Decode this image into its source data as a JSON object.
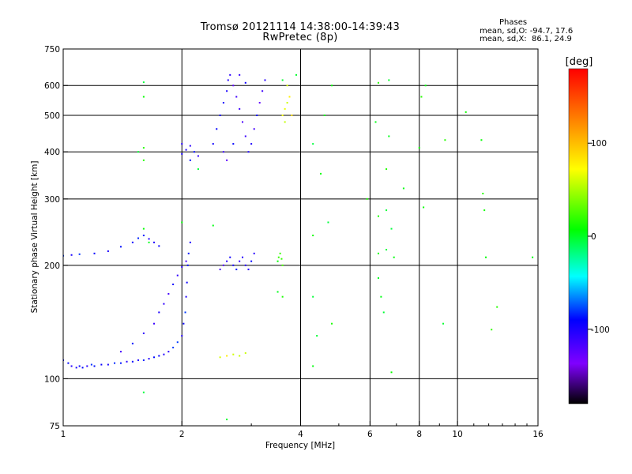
{
  "page": {
    "title_line1": "Tromsø 20121114 14:38:00-14:39:43",
    "title_line2": "RwPretec (8p)",
    "stats_header": "Phases",
    "stats_o": "mean, sd,O: -94.7, 17.6",
    "stats_x": "mean, sd,X:  86.1, 24.9"
  },
  "chart_data": {
    "type": "scatter",
    "title": "Tromsø 20121114 14:38:00-14:39:43",
    "subtitle": "RwPretec (8p)",
    "xlabel": "Frequency [MHz]",
    "ylabel": "Stationary phase Virtual Height [km]",
    "x_scale": "log",
    "y_scale": "log",
    "xlim": [
      1,
      16
    ],
    "ylim": [
      75,
      750
    ],
    "x_ticks": [
      1,
      2,
      4,
      6,
      8,
      10,
      16
    ],
    "x_tick_labels": [
      "1",
      "2",
      "4",
      "6",
      "8",
      "10",
      "16"
    ],
    "y_ticks": [
      75,
      100,
      200,
      300,
      400,
      500,
      600,
      750
    ],
    "y_tick_labels": [
      "75",
      "100",
      "200",
      "300",
      "400",
      "500",
      "600",
      "750"
    ],
    "grid": true,
    "grid_x": [
      2,
      4,
      6,
      8,
      10
    ],
    "grid_y": [
      100,
      200,
      300,
      400,
      500,
      600
    ],
    "color_scale": {
      "label": "[deg]",
      "ticks": [
        100,
        0,
        -100
      ],
      "tick_labels": [
        "100",
        "0",
        "-100"
      ],
      "range": [
        -180,
        180
      ],
      "colors_top_to_bottom": [
        "#ff0000",
        "#ff8000",
        "#ffff00",
        "#00ff00",
        "#00ffff",
        "#0000ff",
        "#8000ff",
        "#000000"
      ]
    },
    "series": [
      {
        "description": "O-mode trace lower (phase ~ -100 deg)",
        "points": [
          [
            1.0,
            112
          ],
          [
            1.03,
            110
          ],
          [
            1.05,
            108
          ],
          [
            1.08,
            107
          ],
          [
            1.1,
            108
          ],
          [
            1.12,
            107
          ],
          [
            1.15,
            108
          ],
          [
            1.18,
            109
          ],
          [
            1.2,
            108
          ],
          [
            1.25,
            109
          ],
          [
            1.3,
            109
          ],
          [
            1.35,
            110
          ],
          [
            1.4,
            110
          ],
          [
            1.45,
            111
          ],
          [
            1.5,
            111
          ],
          [
            1.55,
            112
          ],
          [
            1.6,
            112
          ],
          [
            1.65,
            113
          ],
          [
            1.7,
            114
          ],
          [
            1.75,
            115
          ],
          [
            1.8,
            116
          ],
          [
            1.85,
            118
          ],
          [
            1.9,
            121
          ],
          [
            1.95,
            125
          ],
          [
            2.0,
            130
          ],
          [
            2.02,
            140
          ],
          [
            2.04,
            150
          ],
          [
            2.05,
            165
          ],
          [
            2.06,
            180
          ],
          [
            2.07,
            200
          ],
          [
            2.08,
            215
          ],
          [
            2.1,
            230
          ]
        ],
        "phase": -100
      },
      {
        "description": "O-mode trace middle branch",
        "points": [
          [
            1.4,
            118
          ],
          [
            1.5,
            124
          ],
          [
            1.6,
            132
          ],
          [
            1.7,
            140
          ],
          [
            1.75,
            150
          ],
          [
            1.8,
            158
          ],
          [
            1.85,
            168
          ],
          [
            1.9,
            178
          ],
          [
            1.95,
            188
          ],
          [
            2.0,
            198
          ],
          [
            2.05,
            205
          ]
        ],
        "phase": -110
      },
      {
        "description": "Spread F / layer echoes ~210 km",
        "points": [
          [
            1.0,
            212
          ],
          [
            1.05,
            213
          ],
          [
            1.1,
            214
          ],
          [
            1.2,
            215
          ],
          [
            1.3,
            218
          ],
          [
            1.4,
            224
          ],
          [
            1.5,
            230
          ],
          [
            1.55,
            236
          ],
          [
            1.6,
            240
          ],
          [
            1.65,
            235
          ],
          [
            1.7,
            230
          ],
          [
            1.75,
            225
          ]
        ],
        "phase": -100
      },
      {
        "description": "Echoes 2.5-3.0 MHz near 200 km",
        "points": [
          [
            2.5,
            195
          ],
          [
            2.55,
            200
          ],
          [
            2.6,
            205
          ],
          [
            2.65,
            210
          ],
          [
            2.7,
            200
          ],
          [
            2.75,
            195
          ],
          [
            2.8,
            205
          ],
          [
            2.85,
            210
          ],
          [
            2.9,
            200
          ],
          [
            2.95,
            195
          ],
          [
            3.0,
            205
          ],
          [
            3.05,
            215
          ]
        ],
        "phase": -110
      },
      {
        "description": "High echoes 2.0-2.2 MHz near 400 km",
        "points": [
          [
            2.0,
            395
          ],
          [
            2.05,
            405
          ],
          [
            2.1,
            415
          ],
          [
            2.15,
            400
          ],
          [
            2.2,
            390
          ],
          [
            2.0,
            420
          ],
          [
            2.1,
            380
          ]
        ],
        "phase": -105
      },
      {
        "description": "High echoes 2.4-3.2 MHz 400-650 km",
        "points": [
          [
            2.4,
            420
          ],
          [
            2.45,
            460
          ],
          [
            2.5,
            500
          ],
          [
            2.55,
            540
          ],
          [
            2.6,
            580
          ],
          [
            2.62,
            620
          ],
          [
            2.65,
            640
          ],
          [
            2.7,
            600
          ],
          [
            2.75,
            560
          ],
          [
            2.8,
            520
          ],
          [
            2.85,
            480
          ],
          [
            2.9,
            440
          ],
          [
            2.95,
            400
          ],
          [
            3.0,
            420
          ],
          [
            3.05,
            460
          ],
          [
            3.1,
            500
          ],
          [
            3.15,
            540
          ],
          [
            3.2,
            580
          ],
          [
            3.25,
            620
          ],
          [
            2.55,
            400
          ],
          [
            2.6,
            380
          ],
          [
            2.7,
            420
          ],
          [
            2.8,
            640
          ],
          [
            2.9,
            610
          ]
        ],
        "phase": -115
      },
      {
        "description": "Yellow echoes ~3.6-3.8 MHz 480-600 km",
        "points": [
          [
            3.6,
            500
          ],
          [
            3.65,
            520
          ],
          [
            3.7,
            540
          ],
          [
            3.75,
            560
          ],
          [
            3.8,
            500
          ],
          [
            3.7,
            600
          ],
          [
            3.65,
            480
          ]
        ],
        "phase": 95
      },
      {
        "description": "Green echoes ~3.5 MHz ~210 km",
        "points": [
          [
            3.5,
            205
          ],
          [
            3.52,
            210
          ],
          [
            3.55,
            215
          ],
          [
            3.58,
            208
          ],
          [
            3.6,
            200
          ]
        ],
        "phase": 30
      },
      {
        "description": "Yellow echoes ~2.5-2.9 MHz ~115 km",
        "points": [
          [
            2.5,
            114
          ],
          [
            2.6,
            115
          ],
          [
            2.7,
            116
          ],
          [
            2.8,
            115
          ],
          [
            2.9,
            117
          ]
        ],
        "phase": 95
      },
      {
        "description": "Scattered points",
        "points": [
          [
            1.6,
            612
          ],
          [
            1.6,
            560
          ],
          [
            1.6,
            410
          ],
          [
            1.6,
            380
          ],
          [
            1.55,
            400
          ],
          [
            1.6,
            250
          ],
          [
            1.6,
            92
          ],
          [
            1.65,
            230
          ],
          [
            2.0,
            260
          ],
          [
            2.2,
            360
          ],
          [
            2.4,
            255
          ],
          [
            2.6,
            78
          ],
          [
            3.5,
            170
          ],
          [
            3.6,
            165
          ],
          [
            3.6,
            620
          ],
          [
            3.9,
            640
          ],
          [
            4.3,
            420
          ],
          [
            4.3,
            240
          ],
          [
            4.3,
            165
          ],
          [
            4.3,
            108
          ],
          [
            4.4,
            130
          ],
          [
            4.5,
            350
          ],
          [
            4.6,
            500
          ],
          [
            4.7,
            260
          ],
          [
            4.8,
            140
          ],
          [
            4.8,
            600
          ],
          [
            5.9,
            300
          ],
          [
            6.2,
            480
          ],
          [
            6.3,
            610
          ],
          [
            6.3,
            270
          ],
          [
            6.3,
            215
          ],
          [
            6.3,
            185
          ],
          [
            6.4,
            165
          ],
          [
            6.5,
            150
          ],
          [
            6.6,
            360
          ],
          [
            6.6,
            280
          ],
          [
            6.6,
            220
          ],
          [
            6.7,
            620
          ],
          [
            6.7,
            440
          ],
          [
            6.8,
            250
          ],
          [
            6.8,
            104
          ],
          [
            6.9,
            210
          ],
          [
            7.3,
            320
          ],
          [
            8.0,
            410
          ],
          [
            8.1,
            560
          ],
          [
            8.2,
            285
          ],
          [
            8.3,
            600
          ],
          [
            9.2,
            140
          ],
          [
            9.3,
            430
          ],
          [
            10.5,
            510
          ],
          [
            11.5,
            430
          ],
          [
            11.6,
            310
          ],
          [
            11.7,
            280
          ],
          [
            11.8,
            210
          ],
          [
            12.2,
            135
          ],
          [
            12.6,
            155
          ],
          [
            15.5,
            210
          ]
        ],
        "phase": 20
      }
    ]
  }
}
